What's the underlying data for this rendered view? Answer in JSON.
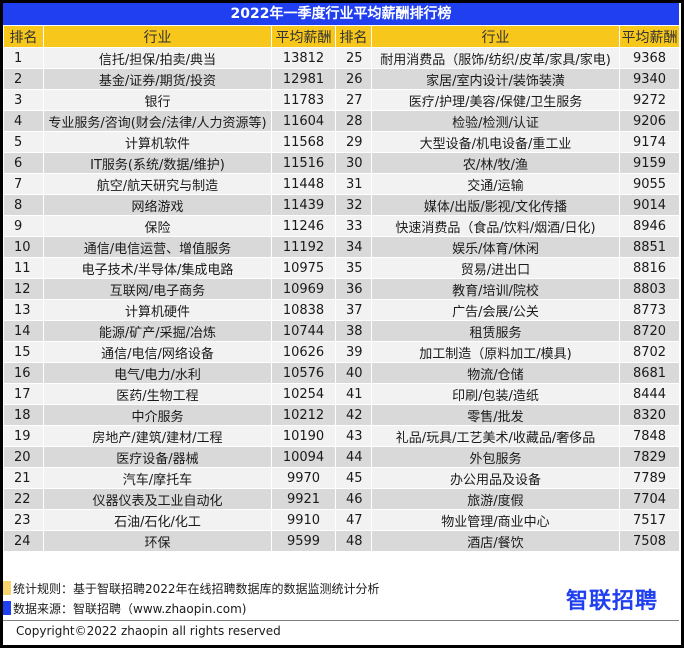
{
  "title": "2022年一季度行业平均薪酬排行榜",
  "headers": {
    "rank": "排名",
    "industry": "行业",
    "salary": "平均薪酬"
  },
  "colors": {
    "title_bg": "#1f3ff0",
    "header_bg": "#f7c71b",
    "row_light": "#f2f2f2",
    "row_dark": "#d9d9d9",
    "logo": "#1f3ff0"
  },
  "rows": [
    {
      "l": {
        "rank": "1",
        "industry": "信托/担保/拍卖/典当",
        "salary": "13812"
      },
      "r": {
        "rank": "25",
        "industry": "耐用消费品（服饰/纺织/皮革/家具/家电)",
        "salary": "9368"
      }
    },
    {
      "l": {
        "rank": "2",
        "industry": "基金/证券/期货/投资",
        "salary": "12981"
      },
      "r": {
        "rank": "26",
        "industry": "家居/室内设计/装饰装潢",
        "salary": "9340"
      }
    },
    {
      "l": {
        "rank": "3",
        "industry": "银行",
        "salary": "11783"
      },
      "r": {
        "rank": "27",
        "industry": "医疗/护理/美容/保健/卫生服务",
        "salary": "9272"
      }
    },
    {
      "l": {
        "rank": "4",
        "industry": "专业服务/咨询(财会/法律/人力资源等)",
        "salary": "11604"
      },
      "r": {
        "rank": "28",
        "industry": "检验/检测/认证",
        "salary": "9206"
      }
    },
    {
      "l": {
        "rank": "5",
        "industry": "计算机软件",
        "salary": "11568"
      },
      "r": {
        "rank": "29",
        "industry": "大型设备/机电设备/重工业",
        "salary": "9174"
      }
    },
    {
      "l": {
        "rank": "6",
        "industry": "IT服务(系统/数据/维护)",
        "salary": "11516"
      },
      "r": {
        "rank": "30",
        "industry": "农/林/牧/渔",
        "salary": "9159"
      }
    },
    {
      "l": {
        "rank": "7",
        "industry": "航空/航天研究与制造",
        "salary": "11448"
      },
      "r": {
        "rank": "31",
        "industry": "交通/运输",
        "salary": "9055"
      }
    },
    {
      "l": {
        "rank": "8",
        "industry": "网络游戏",
        "salary": "11439"
      },
      "r": {
        "rank": "32",
        "industry": "媒体/出版/影视/文化传播",
        "salary": "9014"
      }
    },
    {
      "l": {
        "rank": "9",
        "industry": "保险",
        "salary": "11246"
      },
      "r": {
        "rank": "33",
        "industry": "快速消费品（食品/饮料/烟酒/日化)",
        "salary": "8946"
      }
    },
    {
      "l": {
        "rank": "10",
        "industry": "通信/电信运营、增值服务",
        "salary": "11192"
      },
      "r": {
        "rank": "34",
        "industry": "娱乐/体育/休闲",
        "salary": "8851"
      }
    },
    {
      "l": {
        "rank": "11",
        "industry": "电子技术/半导体/集成电路",
        "salary": "10975"
      },
      "r": {
        "rank": "35",
        "industry": "贸易/进出口",
        "salary": "8816"
      }
    },
    {
      "l": {
        "rank": "12",
        "industry": "互联网/电子商务",
        "salary": "10969"
      },
      "r": {
        "rank": "36",
        "industry": "教育/培训/院校",
        "salary": "8803"
      }
    },
    {
      "l": {
        "rank": "13",
        "industry": "计算机硬件",
        "salary": "10838"
      },
      "r": {
        "rank": "37",
        "industry": "广告/会展/公关",
        "salary": "8773"
      }
    },
    {
      "l": {
        "rank": "14",
        "industry": "能源/矿产/采掘/冶炼",
        "salary": "10744"
      },
      "r": {
        "rank": "38",
        "industry": "租赁服务",
        "salary": "8720"
      }
    },
    {
      "l": {
        "rank": "15",
        "industry": "通信/电信/网络设备",
        "salary": "10626"
      },
      "r": {
        "rank": "39",
        "industry": "加工制造（原料加工/模具)",
        "salary": "8702"
      }
    },
    {
      "l": {
        "rank": "16",
        "industry": "电气/电力/水利",
        "salary": "10576"
      },
      "r": {
        "rank": "40",
        "industry": "物流/仓储",
        "salary": "8681"
      }
    },
    {
      "l": {
        "rank": "17",
        "industry": "医药/生物工程",
        "salary": "10254"
      },
      "r": {
        "rank": "41",
        "industry": "印刷/包装/造纸",
        "salary": "8444"
      }
    },
    {
      "l": {
        "rank": "18",
        "industry": "中介服务",
        "salary": "10212"
      },
      "r": {
        "rank": "42",
        "industry": "零售/批发",
        "salary": "8320"
      }
    },
    {
      "l": {
        "rank": "19",
        "industry": "房地产/建筑/建材/工程",
        "salary": "10190"
      },
      "r": {
        "rank": "43",
        "industry": "礼品/玩具/工艺美术/收藏品/奢侈品",
        "salary": "7848"
      }
    },
    {
      "l": {
        "rank": "20",
        "industry": "医疗设备/器械",
        "salary": "10094"
      },
      "r": {
        "rank": "44",
        "industry": "外包服务",
        "salary": "7829"
      }
    },
    {
      "l": {
        "rank": "21",
        "industry": "汽车/摩托车",
        "salary": "9970"
      },
      "r": {
        "rank": "45",
        "industry": "办公用品及设备",
        "salary": "7789"
      }
    },
    {
      "l": {
        "rank": "22",
        "industry": "仪器仪表及工业自动化",
        "salary": "9921"
      },
      "r": {
        "rank": "46",
        "industry": "旅游/度假",
        "salary": "7704"
      }
    },
    {
      "l": {
        "rank": "23",
        "industry": "石油/石化/化工",
        "salary": "9910"
      },
      "r": {
        "rank": "47",
        "industry": "物业管理/商业中心",
        "salary": "7517"
      }
    },
    {
      "l": {
        "rank": "24",
        "industry": "环保",
        "salary": "9599"
      },
      "r": {
        "rank": "48",
        "industry": "酒店/餐饮",
        "salary": "7508"
      }
    }
  ],
  "footer": {
    "rule_note": "统计规则：基于智联招聘2022年在线招聘数据库的数据监测统计分析",
    "source_note": "数据来源：智联招聘（www.zhaopin.com)",
    "copyright": "Copyright©2022 zhaopin all rights reserved",
    "logo_text": "智联招聘",
    "rule_swatch_color": "#f7c71b",
    "source_swatch_color": "#1f3ff0"
  }
}
